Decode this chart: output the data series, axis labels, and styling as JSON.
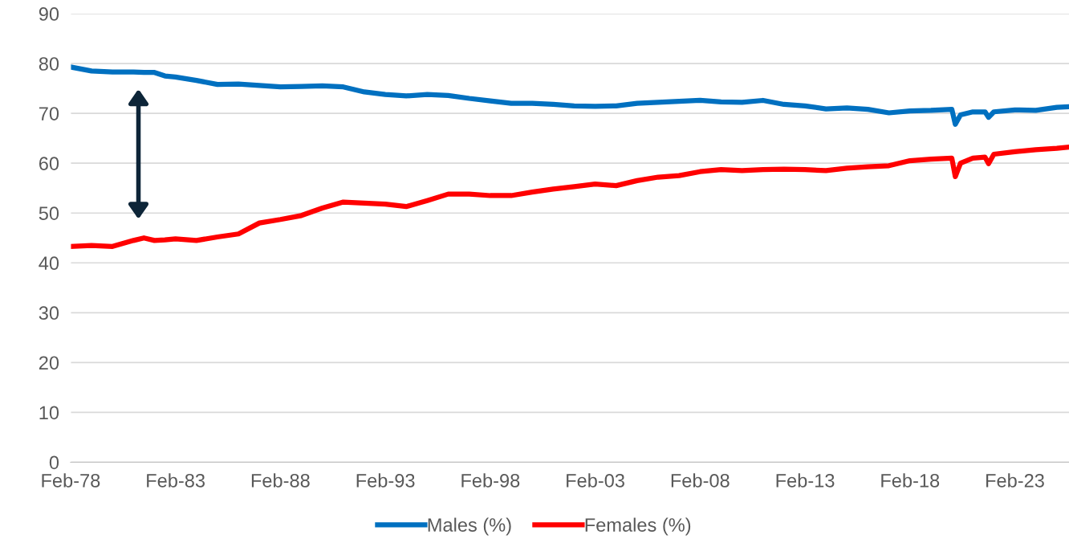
{
  "chart_data": {
    "type": "line",
    "x": [
      "1978-02",
      "1979-02",
      "1980-02",
      "1981-02",
      "1981-08",
      "1982-02",
      "1982-08",
      "1983-02",
      "1984-02",
      "1985-02",
      "1986-02",
      "1987-02",
      "1988-02",
      "1989-02",
      "1990-02",
      "1991-02",
      "1992-02",
      "1993-02",
      "1994-02",
      "1995-02",
      "1996-02",
      "1997-02",
      "1998-02",
      "1999-02",
      "2000-02",
      "2001-02",
      "2002-02",
      "2003-02",
      "2004-02",
      "2005-02",
      "2006-02",
      "2007-02",
      "2008-02",
      "2009-02",
      "2010-02",
      "2011-02",
      "2012-02",
      "2013-02",
      "2014-02",
      "2015-02",
      "2016-02",
      "2017-02",
      "2018-02",
      "2019-02",
      "2020-02",
      "2020-04",
      "2020-07",
      "2021-02",
      "2021-09",
      "2021-11",
      "2022-02",
      "2023-02",
      "2024-02",
      "2025-02",
      "2025-08"
    ],
    "series": [
      {
        "name": "Males (%)",
        "color": "#0070c0",
        "values": [
          79.3,
          78.5,
          78.3,
          78.3,
          78.2,
          78.2,
          77.5,
          77.3,
          76.6,
          75.8,
          75.9,
          75.6,
          75.3,
          75.4,
          75.5,
          75.3,
          74.3,
          73.8,
          73.5,
          73.8,
          73.6,
          73.0,
          72.5,
          72.0,
          72.0,
          71.8,
          71.5,
          71.4,
          71.5,
          72.0,
          72.2,
          72.4,
          72.6,
          72.3,
          72.2,
          72.6,
          71.8,
          71.5,
          70.9,
          71.1,
          70.8,
          70.1,
          70.5,
          70.6,
          70.8,
          67.8,
          69.7,
          70.3,
          70.3,
          69.2,
          70.3,
          70.7,
          70.6,
          71.2,
          71.3
        ]
      },
      {
        "name": "Females (%)",
        "color": "#ff0000",
        "values": [
          43.3,
          43.5,
          43.3,
          44.5,
          45.0,
          44.5,
          44.6,
          44.8,
          44.5,
          45.2,
          45.8,
          48.0,
          48.7,
          49.5,
          51.0,
          52.2,
          52.0,
          51.8,
          51.3,
          52.5,
          53.8,
          53.8,
          53.5,
          53.5,
          54.2,
          54.8,
          55.3,
          55.8,
          55.5,
          56.5,
          57.2,
          57.5,
          58.3,
          58.7,
          58.5,
          58.7,
          58.8,
          58.7,
          58.5,
          59.0,
          59.3,
          59.5,
          60.5,
          60.8,
          61.0,
          57.3,
          60.0,
          61.0,
          61.2,
          59.9,
          61.8,
          62.3,
          62.7,
          63.0,
          63.2
        ]
      }
    ],
    "xlim": [
      "1978-02",
      "2025-09"
    ],
    "xticks": [
      {
        "value": "1978-02",
        "label": "Feb-78"
      },
      {
        "value": "1983-02",
        "label": "Feb-83"
      },
      {
        "value": "1988-02",
        "label": "Feb-88"
      },
      {
        "value": "1993-02",
        "label": "Feb-93"
      },
      {
        "value": "1998-02",
        "label": "Feb-98"
      },
      {
        "value": "2003-02",
        "label": "Feb-03"
      },
      {
        "value": "2008-02",
        "label": "Feb-08"
      },
      {
        "value": "2013-02",
        "label": "Feb-13"
      },
      {
        "value": "2018-02",
        "label": "Feb-18"
      },
      {
        "value": "2023-02",
        "label": "Feb-23"
      }
    ],
    "ylim": [
      0,
      90
    ],
    "yticks": [
      0,
      10,
      20,
      30,
      40,
      50,
      60,
      70,
      80,
      90
    ],
    "grid": "y",
    "legend": "bottom",
    "line_style": "solid",
    "marker": "none"
  }
}
